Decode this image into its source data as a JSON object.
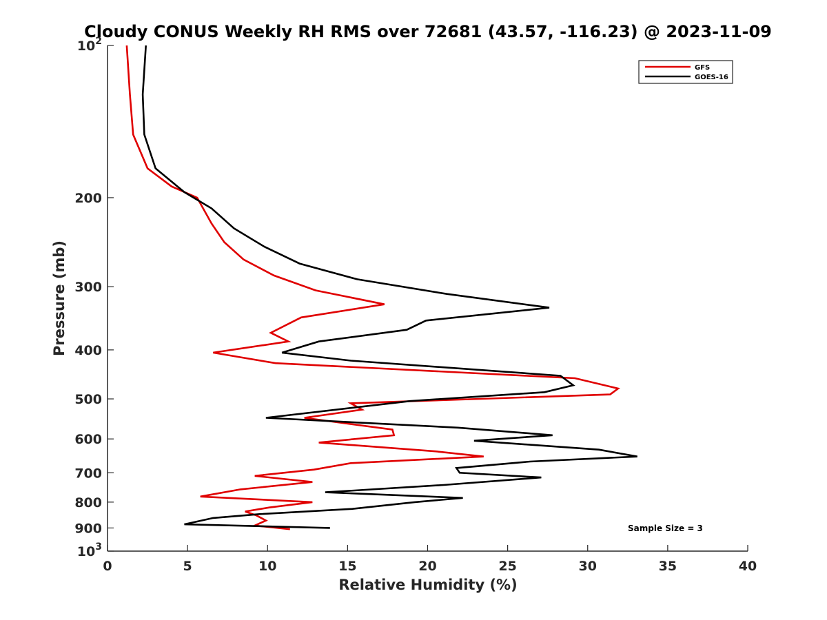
{
  "chart_data": {
    "type": "line",
    "title": "Cloudy CONUS Weekly RH RMS over 72681 (43.57, -116.23) @ 2023-11-09",
    "xlabel": "Relative Humidity (%)",
    "ylabel": "Pressure (mb)",
    "xlim": [
      0,
      40
    ],
    "ylim": [
      100,
      1000
    ],
    "y_scale": "log",
    "y_reversed": true,
    "x_ticks": [
      0,
      5,
      10,
      15,
      20,
      25,
      30,
      35,
      40
    ],
    "x_tick_labels": [
      "0",
      "5",
      "10",
      "15",
      "20",
      "25",
      "30",
      "35",
      "40"
    ],
    "y_ticks": [
      {
        "value": 100,
        "base": "10",
        "exp": "2"
      },
      {
        "value": 200,
        "label": "200"
      },
      {
        "value": 300,
        "label": "300"
      },
      {
        "value": 400,
        "label": "400"
      },
      {
        "value": 500,
        "label": "500"
      },
      {
        "value": 600,
        "label": "600"
      },
      {
        "value": 700,
        "label": "700"
      },
      {
        "value": 800,
        "label": "800"
      },
      {
        "value": 900,
        "label": "900"
      },
      {
        "value": 1000,
        "base": "10",
        "exp": "3"
      }
    ],
    "grid": false,
    "legend_position": "top-right",
    "annotation": "Sample Size = 3",
    "series": [
      {
        "name": "GFS",
        "color": "#e00000",
        "points": [
          [
            1.2,
            100
          ],
          [
            1.4,
            125
          ],
          [
            1.6,
            150
          ],
          [
            2.5,
            175
          ],
          [
            4.0,
            190
          ],
          [
            5.6,
            200
          ],
          [
            6.5,
            225
          ],
          [
            7.3,
            245
          ],
          [
            8.5,
            265
          ],
          [
            10.4,
            285
          ],
          [
            13.0,
            305
          ],
          [
            17.3,
            325
          ],
          [
            12.1,
            345
          ],
          [
            10.2,
            370
          ],
          [
            11.3,
            385
          ],
          [
            6.6,
            405
          ],
          [
            10.5,
            425
          ],
          [
            29.2,
            455
          ],
          [
            31.9,
            477
          ],
          [
            31.4,
            490
          ],
          [
            15.2,
            510
          ],
          [
            15.9,
            525
          ],
          [
            12.3,
            545
          ],
          [
            17.8,
            575
          ],
          [
            17.9,
            590
          ],
          [
            13.2,
            610
          ],
          [
            20.5,
            635
          ],
          [
            23.5,
            650
          ],
          [
            15.2,
            670
          ],
          [
            12.9,
            690
          ],
          [
            9.2,
            710
          ],
          [
            12.8,
            730
          ],
          [
            8.3,
            755
          ],
          [
            5.8,
            780
          ],
          [
            12.8,
            800
          ],
          [
            10.1,
            820
          ],
          [
            8.6,
            835
          ],
          [
            9.3,
            850
          ],
          [
            9.9,
            870
          ],
          [
            9.2,
            890
          ],
          [
            11.4,
            905
          ]
        ]
      },
      {
        "name": "GOES-16",
        "color": "#000000",
        "points": [
          [
            2.4,
            100
          ],
          [
            2.2,
            125
          ],
          [
            2.3,
            150
          ],
          [
            3.0,
            175
          ],
          [
            4.8,
            195
          ],
          [
            6.5,
            210
          ],
          [
            7.9,
            230
          ],
          [
            9.8,
            250
          ],
          [
            12.0,
            270
          ],
          [
            15.6,
            290
          ],
          [
            21.2,
            310
          ],
          [
            27.6,
            330
          ],
          [
            19.9,
            350
          ],
          [
            18.7,
            365
          ],
          [
            13.2,
            385
          ],
          [
            10.9,
            405
          ],
          [
            15.2,
            420
          ],
          [
            28.3,
            450
          ],
          [
            29.1,
            470
          ],
          [
            27.3,
            485
          ],
          [
            18.9,
            505
          ],
          [
            9.9,
            545
          ],
          [
            21.9,
            570
          ],
          [
            27.8,
            590
          ],
          [
            22.9,
            605
          ],
          [
            30.7,
            630
          ],
          [
            33.1,
            650
          ],
          [
            26.4,
            665
          ],
          [
            21.8,
            685
          ],
          [
            22.0,
            700
          ],
          [
            27.1,
            715
          ],
          [
            21.0,
            740
          ],
          [
            13.6,
            765
          ],
          [
            22.2,
            785
          ],
          [
            19.2,
            800
          ],
          [
            15.3,
            825
          ],
          [
            9.5,
            845
          ],
          [
            6.6,
            860
          ],
          [
            4.8,
            885
          ],
          [
            13.9,
            900
          ]
        ]
      }
    ]
  }
}
